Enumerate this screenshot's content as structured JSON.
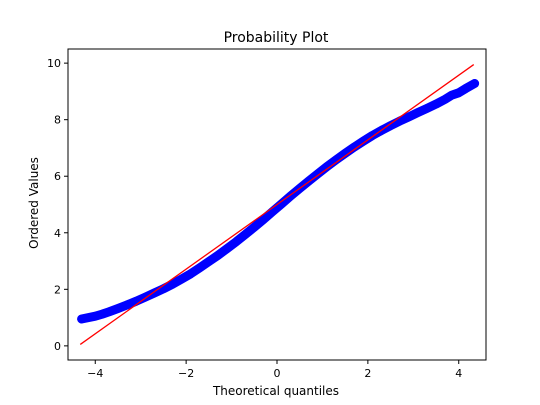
{
  "chart_data": {
    "type": "scatter",
    "title": "Probability Plot",
    "xlabel": "Theoretical quantiles",
    "ylabel": "Ordered Values",
    "xlim": [
      -4.6,
      4.6
    ],
    "ylim": [
      -0.5,
      10.5
    ],
    "xticks": [
      -4,
      -2,
      0,
      2,
      4
    ],
    "xtick_labels": [
      "−4",
      "−2",
      "0",
      "2",
      "4"
    ],
    "yticks": [
      0,
      2,
      4,
      6,
      8,
      10
    ],
    "ytick_labels": [
      "0",
      "2",
      "4",
      "6",
      "8",
      "10"
    ],
    "grid": false,
    "series": [
      {
        "kind": "points",
        "color": "#0000ff",
        "x": [
          -4.3,
          -4.0,
          -3.85,
          -3.7,
          -3.5,
          -3.3,
          -3.1,
          -2.9,
          -2.7,
          -2.5,
          -2.3,
          -2.1,
          -1.9,
          -1.7,
          -1.5,
          -1.3,
          -1.1,
          -0.9,
          -0.7,
          -0.5,
          -0.3,
          -0.1,
          0.1,
          0.3,
          0.5,
          0.7,
          0.9,
          1.1,
          1.3,
          1.5,
          1.7,
          1.9,
          2.1,
          2.3,
          2.5,
          2.7,
          2.9,
          3.1,
          3.3,
          3.5,
          3.7,
          3.85,
          4.0,
          4.15,
          4.35
        ],
        "y": [
          0.95,
          1.05,
          1.12,
          1.2,
          1.32,
          1.45,
          1.58,
          1.72,
          1.87,
          2.02,
          2.18,
          2.36,
          2.55,
          2.76,
          2.98,
          3.2,
          3.44,
          3.68,
          3.94,
          4.2,
          4.47,
          4.75,
          5.02,
          5.3,
          5.57,
          5.83,
          6.09,
          6.34,
          6.58,
          6.81,
          7.03,
          7.24,
          7.44,
          7.62,
          7.79,
          7.95,
          8.1,
          8.25,
          8.4,
          8.55,
          8.72,
          8.87,
          8.95,
          9.1,
          9.28
        ]
      },
      {
        "kind": "fit-line",
        "color": "#ff0000",
        "x": [
          -4.33,
          4.33
        ],
        "y": [
          0.05,
          9.95
        ]
      }
    ]
  }
}
